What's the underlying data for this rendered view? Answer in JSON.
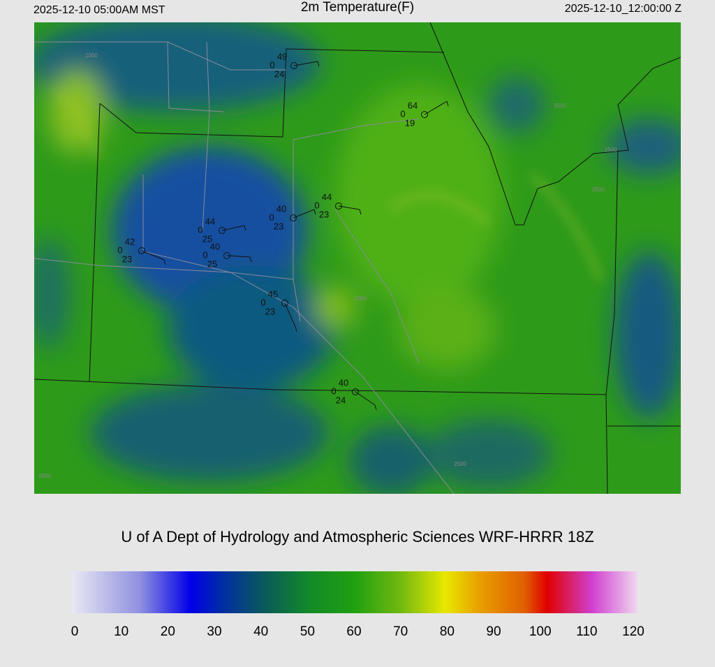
{
  "header": {
    "local_time": "2025-12-10 05:00AM MST",
    "title": "2m Temperature(F)",
    "utc_time": "2025-12-10_12:00:00 Z"
  },
  "stations": [
    {
      "temperature": 49,
      "pressure": 0,
      "dewpoint": 24
    },
    {
      "temperature": 64,
      "pressure": 0,
      "dewpoint": 19
    },
    {
      "temperature": 44,
      "pressure": 0,
      "dewpoint": 23
    },
    {
      "temperature": 40,
      "pressure": 0,
      "dewpoint": 23
    },
    {
      "temperature": 44,
      "pressure": 0,
      "dewpoint": 25
    },
    {
      "temperature": 40,
      "pressure": 0,
      "dewpoint": 25
    },
    {
      "temperature": 42,
      "pressure": 0,
      "dewpoint": 23
    },
    {
      "temperature": 45,
      "pressure": 0,
      "dewpoint": 23
    },
    {
      "temperature": 40,
      "pressure": 0,
      "dewpoint": 24
    }
  ],
  "contour_labels": [
    "1000",
    "2500",
    "3500",
    "3500",
    "2000",
    "2500",
    "2000"
  ],
  "footer": {
    "credit": "U of A Dept of Hydrology and Atmospheric Sciences WRF-HRRR 18Z"
  },
  "colorbar": {
    "lim": [
      0,
      120
    ],
    "ticks": [
      0,
      10,
      20,
      30,
      40,
      50,
      60,
      70,
      80,
      90,
      100,
      110,
      120
    ]
  }
}
